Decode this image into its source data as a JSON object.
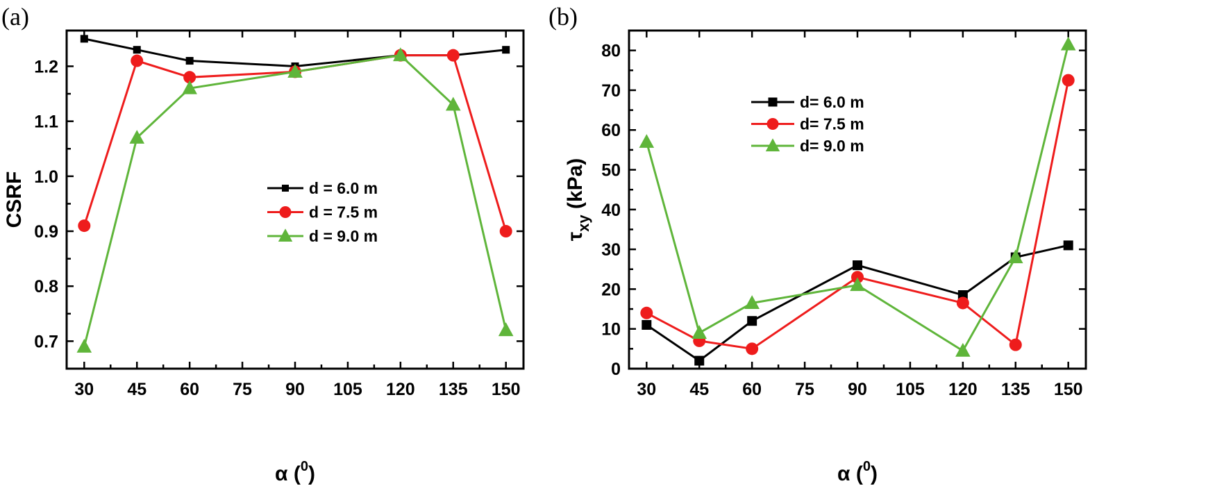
{
  "colors": {
    "black": "#000000",
    "red": "#ee1c1c",
    "green": "#5fb53a"
  },
  "chart_data": [
    {
      "type": "line",
      "panel_label": "(a)",
      "xlabel": "α (⁰)",
      "xlabel_main": "α (",
      "xlabel_sup": "0",
      "xlabel_close": ")",
      "ylabel": "CSRF",
      "x": [
        30,
        45,
        60,
        90,
        120,
        135,
        150
      ],
      "xlim": [
        25,
        155
      ],
      "ylim": [
        0.65,
        1.265
      ],
      "xticks": [
        30,
        45,
        60,
        75,
        90,
        105,
        120,
        135,
        150
      ],
      "yticks": [
        0.7,
        0.8,
        0.9,
        1.0,
        1.1,
        1.2
      ],
      "ytick_labels": [
        "0.7",
        "0.8",
        "0.9",
        "1.0",
        "1.1",
        "1.2"
      ],
      "legend_position": "center-right",
      "series": [
        {
          "name": "d = 6.0 m",
          "color": "#000000",
          "marker": "square",
          "values": [
            1.25,
            1.23,
            1.21,
            1.2,
            1.22,
            1.22,
            1.23
          ]
        },
        {
          "name": "d = 7.5 m",
          "color": "#ee1c1c",
          "marker": "circle",
          "values": [
            0.91,
            1.21,
            1.18,
            1.19,
            1.22,
            1.22,
            0.9
          ]
        },
        {
          "name": "d = 9.0 m",
          "color": "#5fb53a",
          "marker": "triangle",
          "values": [
            0.69,
            1.07,
            1.16,
            1.19,
            1.22,
            1.13,
            0.72
          ]
        }
      ]
    },
    {
      "type": "line",
      "panel_label": "(b)",
      "xlabel": "α (⁰)",
      "xlabel_main": "α (",
      "xlabel_sup": "0",
      "xlabel_close": ")",
      "ylabel": "τxy (kPa)",
      "ylabel_main": "τ",
      "ylabel_sub": "xy",
      "ylabel_unit": " (kPa)",
      "x": [
        30,
        45,
        60,
        90,
        120,
        135,
        150
      ],
      "xlim": [
        25,
        155
      ],
      "ylim": [
        0,
        85
      ],
      "xticks": [
        30,
        45,
        60,
        75,
        90,
        105,
        120,
        135,
        150
      ],
      "yticks": [
        0,
        10,
        20,
        30,
        40,
        50,
        60,
        70,
        80
      ],
      "ytick_labels": [
        "0",
        "10",
        "20",
        "30",
        "40",
        "50",
        "60",
        "70",
        "80"
      ],
      "legend_position": "top-left",
      "series": [
        {
          "name": "d= 6.0 m",
          "color": "#000000",
          "marker": "square",
          "values": [
            11,
            2,
            12,
            26,
            18.5,
            28,
            31
          ]
        },
        {
          "name": "d= 7.5 m",
          "color": "#ee1c1c",
          "marker": "circle",
          "values": [
            14,
            7,
            5,
            23,
            16.5,
            6,
            72.5
          ]
        },
        {
          "name": "d= 9.0 m",
          "color": "#5fb53a",
          "marker": "triangle",
          "values": [
            57,
            9,
            16.5,
            21,
            4.5,
            28,
            81.5
          ]
        }
      ]
    }
  ]
}
